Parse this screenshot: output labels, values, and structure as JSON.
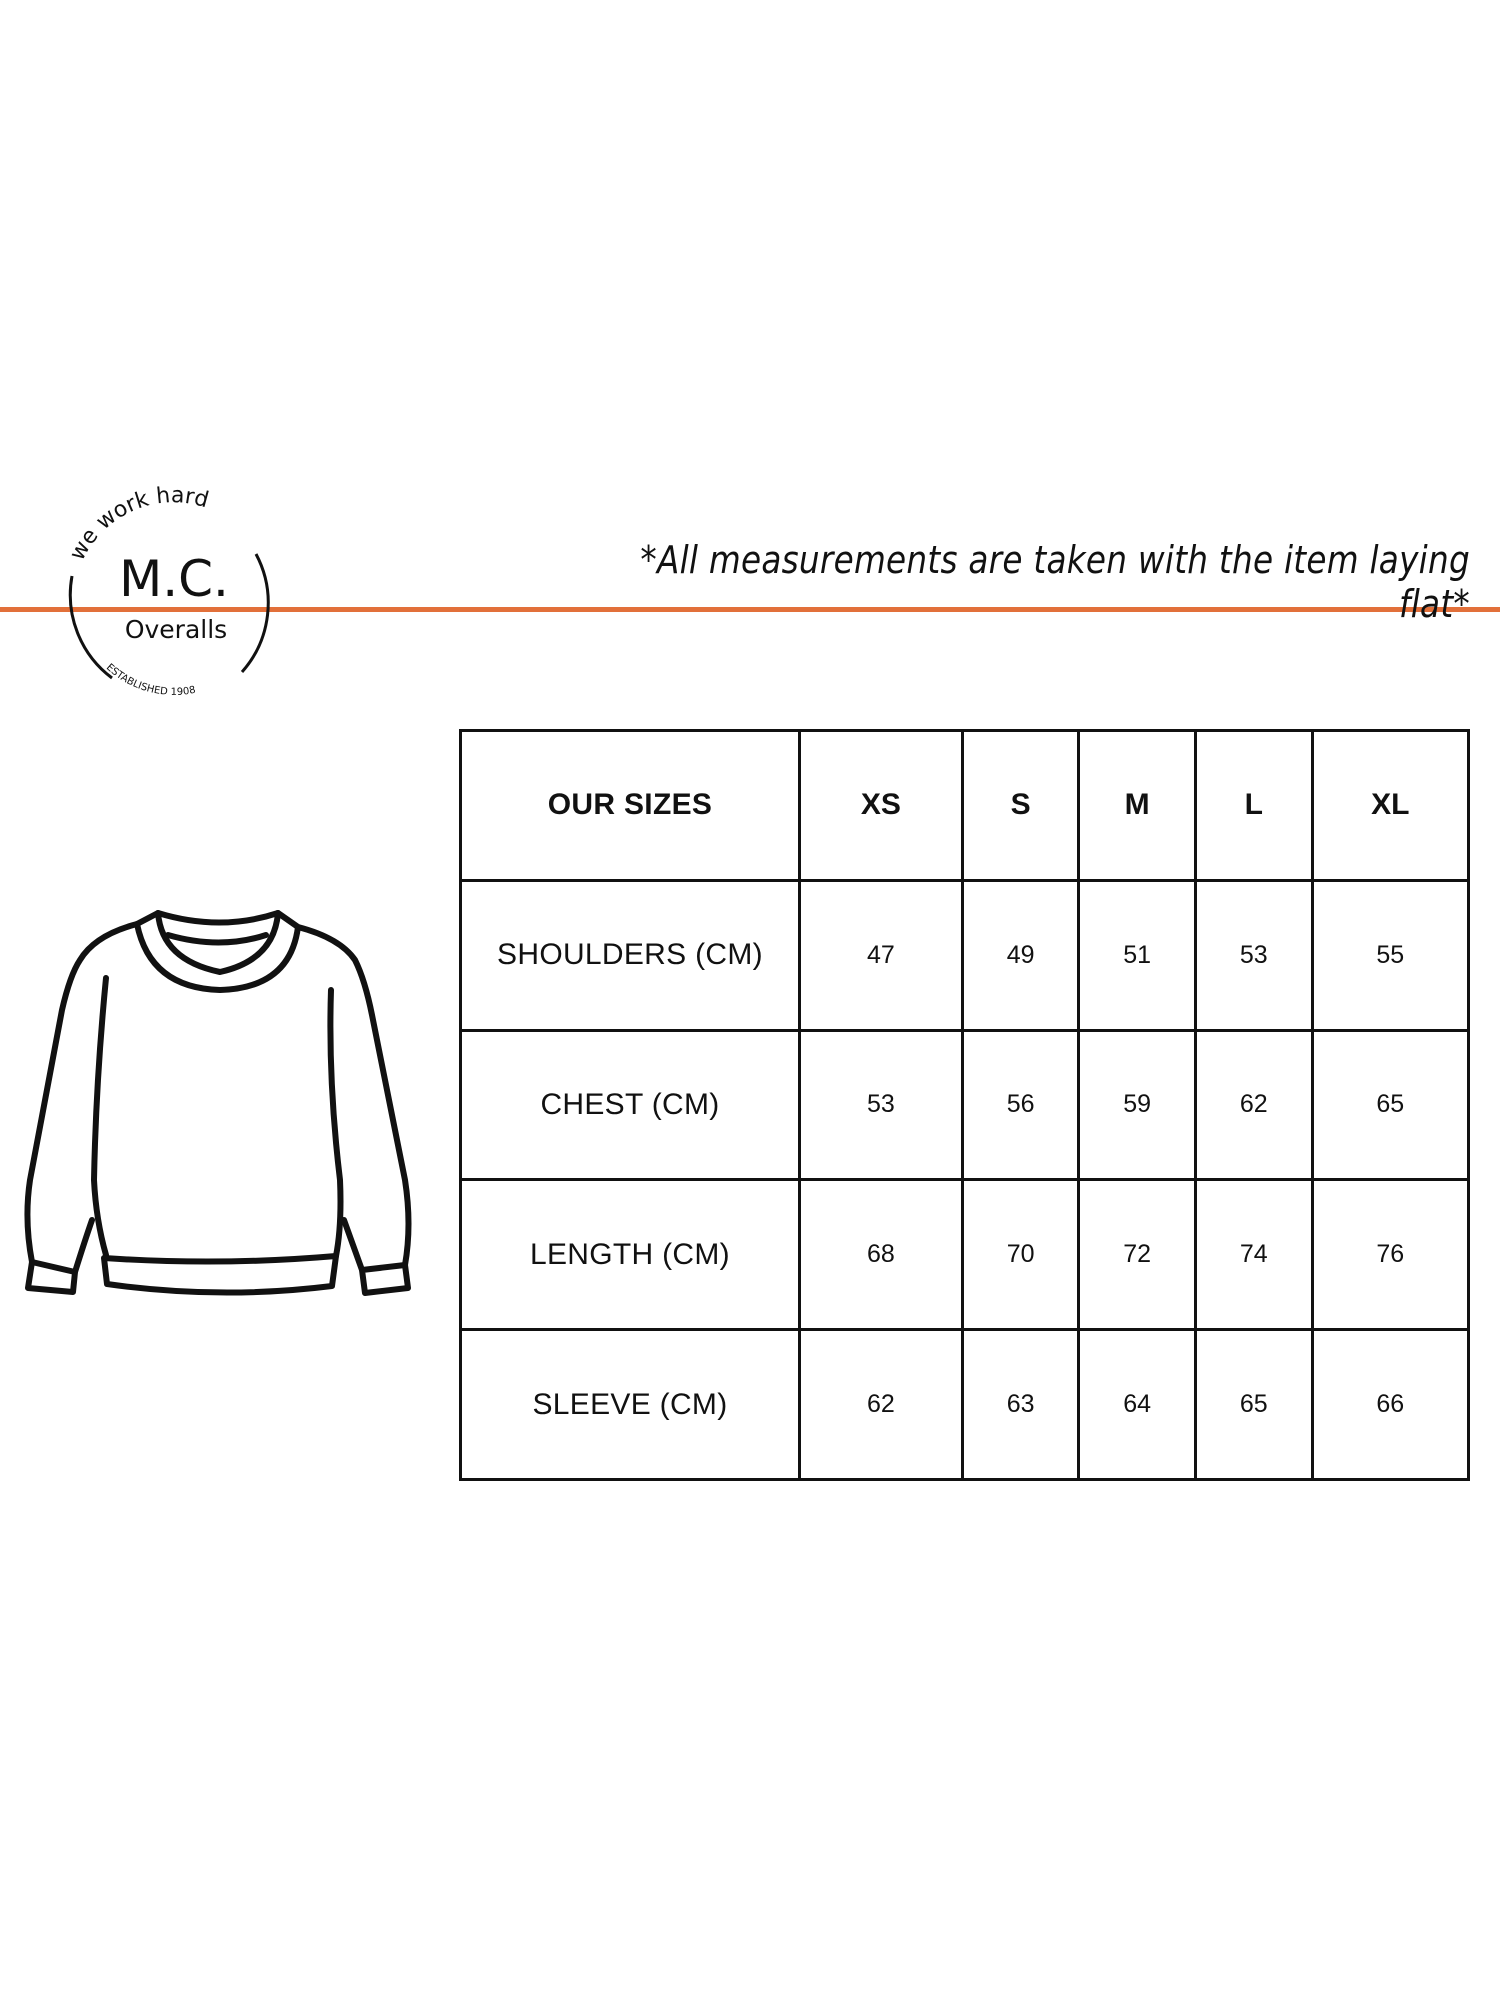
{
  "brand": {
    "arc_top": "we work hard",
    "name": "M.C.",
    "sub": "Overalls",
    "arc_bottom": "ESTABLISHED 1908"
  },
  "caption": "*All measurements are taken with the item laying flat*",
  "colors": {
    "accent": "#e2703a",
    "ink": "#111111"
  },
  "illustration": "sweater-icon",
  "table": {
    "header": [
      "OUR SIZES",
      "XS",
      "S",
      "M",
      "L",
      "XL"
    ],
    "rows": [
      {
        "label": "SHOULDERS (CM)",
        "values": [
          "47",
          "49",
          "51",
          "53",
          "55"
        ]
      },
      {
        "label": "CHEST (CM)",
        "values": [
          "53",
          "56",
          "59",
          "62",
          "65"
        ]
      },
      {
        "label": "LENGTH (CM)",
        "values": [
          "68",
          "70",
          "72",
          "74",
          "76"
        ]
      },
      {
        "label": "SLEEVE (CM)",
        "values": [
          "62",
          "63",
          "64",
          "65",
          "66"
        ]
      }
    ]
  }
}
